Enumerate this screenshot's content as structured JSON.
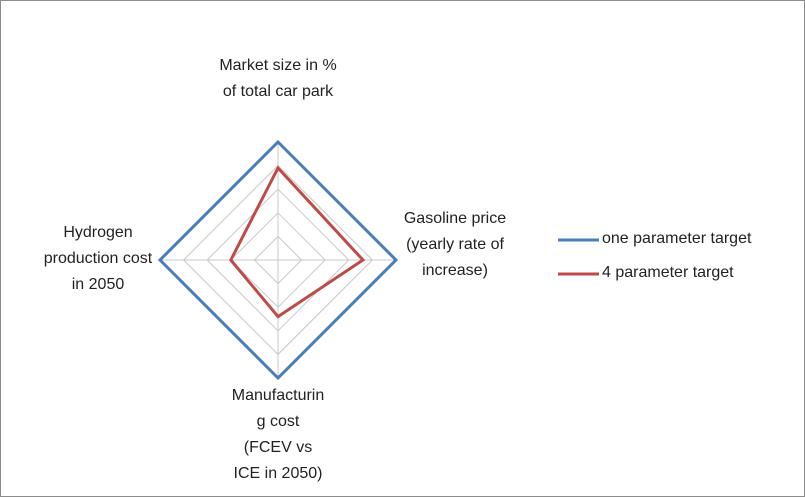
{
  "chart_data": {
    "type": "radar",
    "categories": [
      "Market size in % of total car park",
      "Gasoline price (yearly rate of increase)",
      "Manufacturing cost (FCEV vs ICE in 2050)",
      "Hydrogen production cost in 2050"
    ],
    "series": [
      {
        "name": "one parameter target",
        "color": "#4a7ebb",
        "values": [
          5,
          5,
          5,
          5
        ]
      },
      {
        "name": "4 parameter target",
        "color": "#be4b48",
        "values": [
          3.9,
          3.6,
          2.4,
          2.0
        ]
      }
    ],
    "ylim": [
      0,
      5
    ],
    "yticks": [
      0,
      1,
      2,
      3,
      4,
      5
    ],
    "grid": true,
    "legend": "right"
  }
}
